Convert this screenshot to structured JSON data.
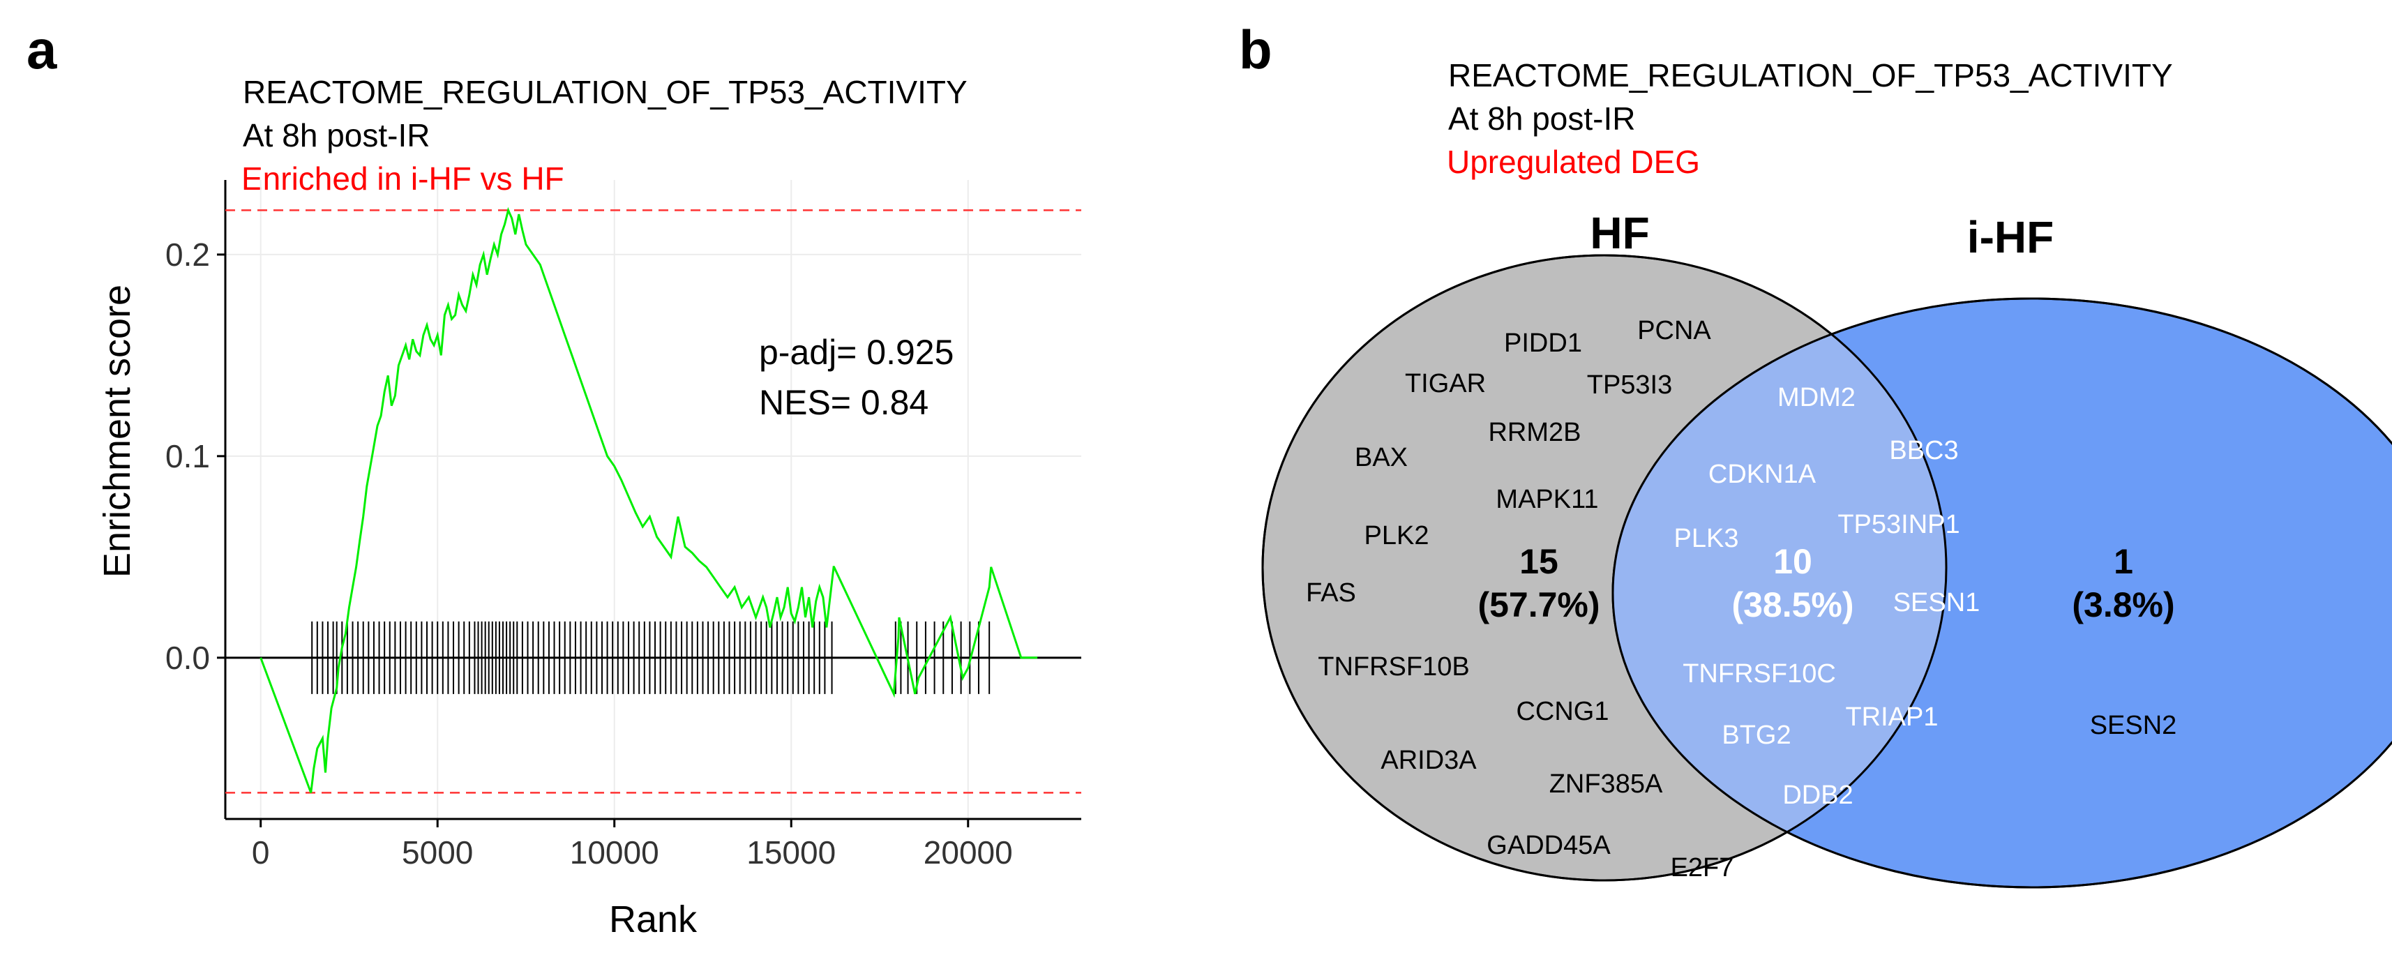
{
  "panel_a": {
    "letter": "a",
    "title_line1": "REACTOME_REGULATION_OF_TP53_ACTIVITY",
    "title_line2": "At 8h post-IR",
    "title_line3": "Enriched in i-HF vs HF",
    "title_line3_color": "#ff0000",
    "stat_padj": "p-adj= 0.925",
    "stat_nes": "NES= 0.84",
    "curve_color": "#00ee00",
    "threshold_color": "#ff3333"
  },
  "panel_b": {
    "letter": "b",
    "title_line1": "REACTOME_REGULATION_OF_TP53_ACTIVITY",
    "title_line2": "At 8h post-IR",
    "title_line3": "Upregulated DEG",
    "title_line3_color": "#ff0000",
    "set_left_label": "HF",
    "set_right_label": "i-HF",
    "left_color": "#bebebe",
    "right_color": "#6b9cf7",
    "overlap_color": "#97b5f2",
    "left_only": {
      "count": "15",
      "percent": "(57.7%)",
      "genes": [
        "PIDD1",
        "PCNA",
        "TIGAR",
        "TP53I3",
        "RRM2B",
        "BAX",
        "MAPK11",
        "PLK2",
        "FAS",
        "TNFRSF10B",
        "CCNG1",
        "ARID3A",
        "ZNF385A",
        "GADD45A",
        "E2F7"
      ]
    },
    "overlap": {
      "count": "10",
      "percent": "(38.5%)",
      "genes": [
        "MDM2",
        "BBC3",
        "CDKN1A",
        "TP53INP1",
        "PLK3",
        "SESN1",
        "TNFRSF10C",
        "TRIAP1",
        "BTG2",
        "DDB2"
      ]
    },
    "right_only": {
      "count": "1",
      "percent": "(3.8%)",
      "genes": [
        "SESN2"
      ]
    }
  },
  "chart_data": [
    {
      "type": "line",
      "title": "REACTOME_REGULATION_OF_TP53_ACTIVITY",
      "xlabel": "Rank",
      "ylabel": "Enrichment score",
      "xlim": [
        -1000,
        23200
      ],
      "ylim": [
        -0.08,
        0.237
      ],
      "x_ticks": [
        0,
        5000,
        10000,
        15000,
        20000
      ],
      "x_tick_labels": [
        "0",
        "5000",
        "10000",
        "15000",
        "20000"
      ],
      "y_ticks": [
        0.0,
        0.1,
        0.2
      ],
      "y_tick_labels": [
        "0.0",
        "0.1",
        "0.2"
      ],
      "max_es": 0.222,
      "min_es": -0.067,
      "es_curve": {
        "x": [
          0,
          1420,
          1470,
          1500,
          1600,
          1750,
          1830,
          1900,
          2000,
          2150,
          2200,
          2300,
          2400,
          2500,
          2600,
          2700,
          2800,
          2900,
          3000,
          3100,
          3200,
          3300,
          3400,
          3500,
          3600,
          3700,
          3800,
          3900,
          4000,
          4100,
          4200,
          4300,
          4400,
          4500,
          4600,
          4700,
          4800,
          4900,
          5000,
          5100,
          5200,
          5300,
          5400,
          5500,
          5600,
          5700,
          5800,
          5900,
          6000,
          6100,
          6200,
          6300,
          6400,
          6500,
          6600,
          6700,
          6800,
          6900,
          7000,
          7100,
          7200,
          7300,
          7400,
          7500,
          7700,
          7900,
          8000,
          8200,
          8400,
          8600,
          8800,
          9000,
          9200,
          9400,
          9600,
          9800,
          10000,
          10200,
          10400,
          10600,
          10800,
          11000,
          11200,
          11400,
          11600,
          11800,
          12000,
          12200,
          12400,
          12600,
          12800,
          13000,
          13200,
          13400,
          13600,
          13800,
          14000,
          14200,
          14300,
          14400,
          14500,
          14600,
          14700,
          14800,
          14900,
          15000,
          15100,
          15200,
          15300,
          15400,
          15500,
          15600,
          15700,
          15800,
          15900,
          16000,
          16100,
          16200,
          16210,
          17900,
          18030,
          18050,
          18500,
          18600,
          19200,
          19500,
          19850,
          20000,
          20600,
          20650,
          21500,
          21960
        ],
        "y": [
          0,
          -0.067,
          -0.06,
          -0.055,
          -0.045,
          -0.04,
          -0.057,
          -0.04,
          -0.025,
          -0.015,
          -0.005,
          0.005,
          0.012,
          0.025,
          0.035,
          0.045,
          0.058,
          0.07,
          0.085,
          0.095,
          0.105,
          0.115,
          0.12,
          0.132,
          0.14,
          0.125,
          0.13,
          0.145,
          0.15,
          0.155,
          0.148,
          0.158,
          0.152,
          0.15,
          0.16,
          0.165,
          0.158,
          0.155,
          0.16,
          0.15,
          0.17,
          0.175,
          0.168,
          0.17,
          0.18,
          0.175,
          0.172,
          0.18,
          0.19,
          0.185,
          0.195,
          0.2,
          0.19,
          0.198,
          0.205,
          0.2,
          0.21,
          0.215,
          0.222,
          0.218,
          0.21,
          0.22,
          0.212,
          0.205,
          0.2,
          0.195,
          0.19,
          0.18,
          0.17,
          0.16,
          0.15,
          0.14,
          0.13,
          0.12,
          0.11,
          0.1,
          0.095,
          0.088,
          0.08,
          0.072,
          0.065,
          0.07,
          0.06,
          0.055,
          0.05,
          0.07,
          0.055,
          0.052,
          0.048,
          0.045,
          0.04,
          0.035,
          0.03,
          0.035,
          0.025,
          0.03,
          0.02,
          0.03,
          0.025,
          0.015,
          0.022,
          0.03,
          0.02,
          0.025,
          0.035,
          0.022,
          0.018,
          0.025,
          0.035,
          0.02,
          0.03,
          0.015,
          0.028,
          0.035,
          0.03,
          0.015,
          0.03,
          0.045,
          0.045,
          -0.018,
          0.01,
          0.02,
          -0.018,
          -0.01,
          0.01,
          0.02,
          -0.01,
          -0.005,
          0.035,
          0.045,
          0.0,
          0.0
        ]
      },
      "hit_ranks": [
        1450,
        1600,
        1750,
        1900,
        2050,
        2150,
        2300,
        2450,
        2600,
        2750,
        2900,
        3050,
        3200,
        3350,
        3500,
        3650,
        3800,
        3950,
        4100,
        4250,
        4400,
        4550,
        4700,
        4850,
        5000,
        5150,
        5300,
        5450,
        5600,
        5750,
        5900,
        6050,
        6150,
        6250,
        6350,
        6450,
        6550,
        6650,
        6750,
        6850,
        6950,
        7050,
        7150,
        7250,
        7400,
        7550,
        7700,
        7850,
        8000,
        8150,
        8300,
        8450,
        8600,
        8750,
        8900,
        9050,
        9200,
        9350,
        9500,
        9650,
        9800,
        9950,
        10100,
        10250,
        10400,
        10550,
        10700,
        10850,
        11000,
        11150,
        11300,
        11450,
        11600,
        11750,
        11900,
        12050,
        12200,
        12350,
        12500,
        12650,
        12800,
        12950,
        13100,
        13250,
        13400,
        13550,
        13700,
        13850,
        14000,
        14150,
        14300,
        14450,
        14600,
        14750,
        14900,
        15050,
        15200,
        15350,
        15500,
        15650,
        15800,
        15950,
        16150,
        17950,
        18100,
        18300,
        18550,
        18800,
        19050,
        19300,
        19550,
        19800,
        20050,
        20300,
        20600
      ]
    },
    {
      "type": "venn",
      "sets": [
        "HF",
        "i-HF"
      ],
      "regions": [
        {
          "set": "HF only",
          "count": 15,
          "percent": 57.7
        },
        {
          "set": "HF ∩ i-HF",
          "count": 10,
          "percent": 38.5
        },
        {
          "set": "i-HF only",
          "count": 1,
          "percent": 3.8
        }
      ]
    }
  ]
}
